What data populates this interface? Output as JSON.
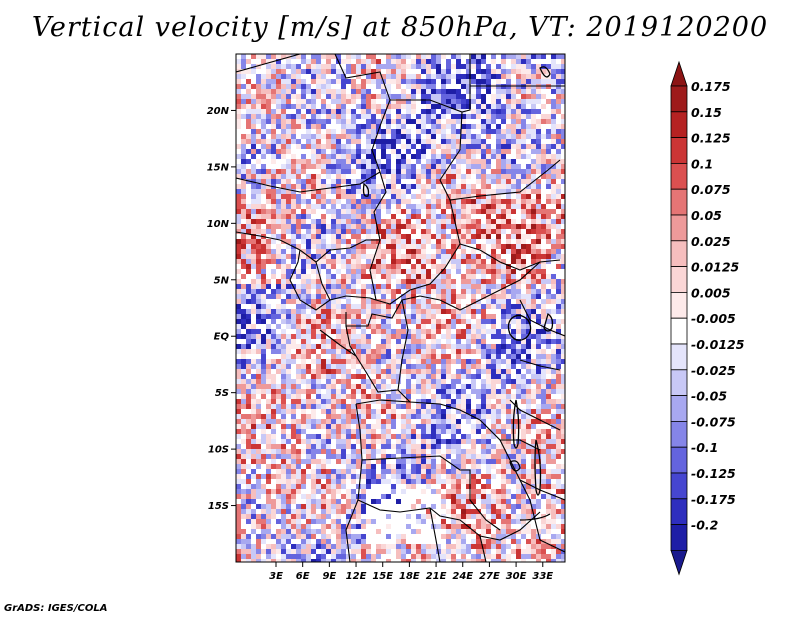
{
  "title": "Vertical velocity [m/s] at 850hPa, VT: 2019120200",
  "credit": "GrADS: IGES/COLA",
  "map": {
    "lon_range": [
      -1.5,
      35.5
    ],
    "lat_range": [
      -20,
      25
    ],
    "lat_ticks": [
      {
        "value": 20,
        "label": "20N"
      },
      {
        "value": 15,
        "label": "15N"
      },
      {
        "value": 10,
        "label": "10N"
      },
      {
        "value": 5,
        "label": "5N"
      },
      {
        "value": 0,
        "label": "EQ"
      },
      {
        "value": -5,
        "label": "5S"
      },
      {
        "value": -10,
        "label": "10S"
      },
      {
        "value": -15,
        "label": "15S"
      }
    ],
    "lon_ticks": [
      {
        "value": 3,
        "label": "3E"
      },
      {
        "value": 6,
        "label": "6E"
      },
      {
        "value": 9,
        "label": "9E"
      },
      {
        "value": 12,
        "label": "12E"
      },
      {
        "value": 15,
        "label": "15E"
      },
      {
        "value": 18,
        "label": "18E"
      },
      {
        "value": 21,
        "label": "21E"
      },
      {
        "value": 24,
        "label": "24E"
      },
      {
        "value": 27,
        "label": "27E"
      },
      {
        "value": 30,
        "label": "30E"
      },
      {
        "value": 33,
        "label": "33E"
      }
    ]
  },
  "colorbar": {
    "levels": [
      {
        "label": "0.175",
        "color": "#9e1b1b"
      },
      {
        "label": "0.15",
        "color": "#b52222"
      },
      {
        "label": "0.125",
        "color": "#cb3535"
      },
      {
        "label": "0.1",
        "color": "#db5050"
      },
      {
        "label": "0.075",
        "color": "#e57575"
      },
      {
        "label": "0.05",
        "color": "#ee9a9a"
      },
      {
        "label": "0.025",
        "color": "#f6bebe"
      },
      {
        "label": "0.0125",
        "color": "#fad6d6"
      },
      {
        "label": "0.005",
        "color": "#fdeaea"
      },
      {
        "label": "-0.005",
        "color": "#ffffff"
      },
      {
        "label": "-0.0125",
        "color": "#e4e4fb"
      },
      {
        "label": "-0.025",
        "color": "#c8c8f6"
      },
      {
        "label": "-0.05",
        "color": "#a8a8f0"
      },
      {
        "label": "-0.075",
        "color": "#8585e8"
      },
      {
        "label": "-0.1",
        "color": "#6464de"
      },
      {
        "label": "-0.125",
        "color": "#4646d0"
      },
      {
        "label": "-0.175",
        "color": "#2e2ebe"
      },
      {
        "label": "-0.2",
        "color": "#1e1ea6"
      }
    ],
    "top_color": "#8c1414",
    "bottom_color": "#1a1a8e"
  }
}
